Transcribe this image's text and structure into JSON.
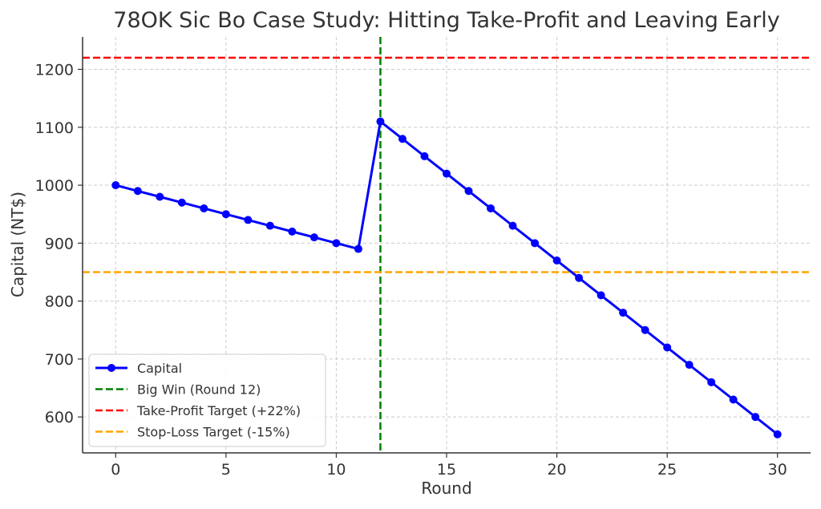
{
  "chart_data": {
    "type": "line",
    "title": "78OK Sic Bo Case Study: Hitting Take-Profit and Leaving Early",
    "xlabel": "Round",
    "ylabel": "Capital (NT$)",
    "xlim": [
      -1.5,
      31.5
    ],
    "ylim": [
      538,
      1256
    ],
    "grid": true,
    "legend_position": "bottom-left",
    "x_ticks": [
      0,
      5,
      10,
      15,
      20,
      25,
      30
    ],
    "y_ticks": [
      600,
      700,
      800,
      900,
      1000,
      1100,
      1200
    ],
    "series": [
      {
        "name": "Capital",
        "color": "#0000ff",
        "x": [
          0,
          1,
          2,
          3,
          4,
          5,
          6,
          7,
          8,
          9,
          10,
          11,
          12,
          13,
          14,
          15,
          16,
          17,
          18,
          19,
          20,
          21,
          22,
          23,
          24,
          25,
          26,
          27,
          28,
          29,
          30
        ],
        "values": [
          1000,
          990,
          980,
          970,
          960,
          950,
          940,
          930,
          920,
          910,
          900,
          890,
          1110,
          1080,
          1050,
          1020,
          990,
          960,
          930,
          900,
          870,
          840,
          810,
          780,
          750,
          720,
          690,
          660,
          630,
          600,
          570
        ]
      }
    ],
    "reference_lines": [
      {
        "name": "Big Win (Round 12)",
        "orientation": "vertical",
        "value": 12,
        "color": "#008000"
      },
      {
        "name": "Take-Profit Target (+22%)",
        "orientation": "horizontal",
        "value": 1220,
        "color": "#ff0000"
      },
      {
        "name": "Stop-Loss Target (-15%)",
        "orientation": "horizontal",
        "value": 850,
        "color": "#ffa500"
      }
    ]
  }
}
